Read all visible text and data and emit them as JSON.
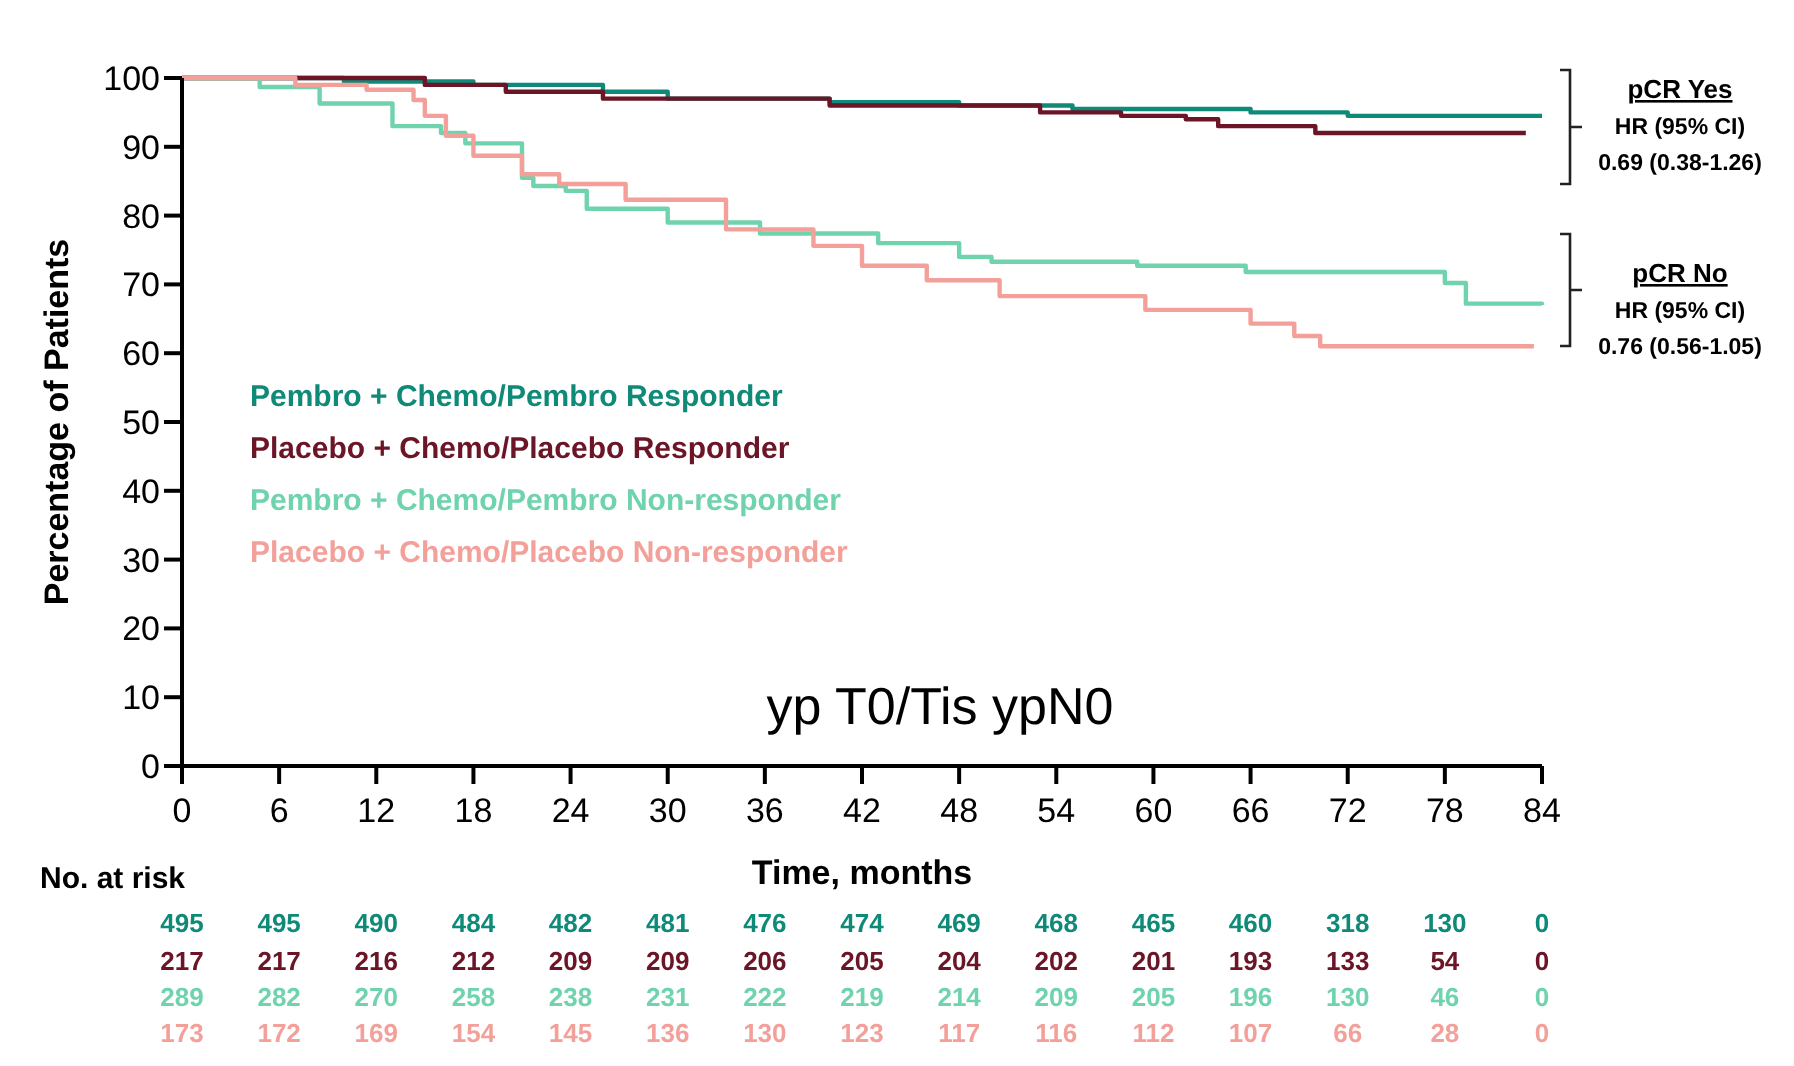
{
  "chart_data": {
    "type": "step",
    "title": "yp T0/Tis ypN0",
    "xlabel": "Time, months",
    "ylabel": "Percentage of Patients",
    "xlim": [
      0,
      84
    ],
    "xticks": [
      0,
      6,
      12,
      18,
      24,
      30,
      36,
      42,
      48,
      54,
      60,
      66,
      72,
      78,
      84
    ],
    "ylim": [
      0,
      100
    ],
    "yticks": [
      0,
      10,
      20,
      30,
      40,
      50,
      60,
      70,
      80,
      90,
      100
    ],
    "legend": "left",
    "grid": false,
    "series": [
      {
        "name": "Pembro + Chemo/Pembro Responder",
        "color": "#0f8a78",
        "x": [
          0,
          10,
          18,
          26,
          30,
          40,
          48,
          55,
          62,
          66,
          72,
          84
        ],
        "values": [
          100,
          99.5,
          99,
          98,
          97,
          96.5,
          96,
          95.5,
          95.5,
          95,
          94.5,
          94.5
        ]
      },
      {
        "name": "Placebo + Chemo/Placebo Responder",
        "color": "#6b1526",
        "x": [
          0,
          15,
          20,
          26,
          40,
          53,
          58,
          62,
          64,
          70,
          83
        ],
        "values": [
          100,
          99,
          98,
          97,
          96,
          95,
          94.5,
          94,
          93,
          92,
          92
        ]
      },
      {
        "name": "Pembro + Chemo/Pembro Non-responder",
        "color": "#6fd3ad",
        "x": [
          0,
          3.6,
          4.8,
          8.5,
          13,
          16,
          17.5,
          21,
          21.7,
          23.7,
          25,
          30,
          35.7,
          43,
          48,
          50,
          59,
          65.7,
          78,
          79.3,
          84
        ],
        "values": [
          100,
          100,
          98.7,
          96.3,
          93,
          92,
          90.5,
          85.5,
          84.3,
          83.6,
          81,
          79,
          77.4,
          76,
          74,
          73.3,
          72.7,
          71.8,
          70.2,
          67.2,
          67
        ]
      },
      {
        "name": "Placebo + Chemo/Placebo Non-responder",
        "color": "#f4a09a",
        "x": [
          0,
          7,
          11.4,
          14.3,
          15,
          16.3,
          18,
          21,
          23.3,
          27.4,
          33.6,
          39,
          42,
          46,
          50.5,
          59.5,
          66,
          68.7,
          70.3,
          83.5
        ],
        "values": [
          100,
          99,
          98.3,
          96.8,
          94.5,
          91.6,
          88.7,
          86,
          84.6,
          82.3,
          78,
          75.6,
          72.7,
          70.6,
          68.3,
          66.3,
          64.3,
          62.5,
          61,
          61
        ]
      }
    ],
    "annotations": [
      "No. at risk",
      "495 495 490 484 482 481 476 474 469 468 465 460 318 130 0",
      "217 217 216 212 209 209 206 205 204 202 201 193 133 54 0",
      "289 282 270 258 238 231 222 219 214 209 205 196 130 46 0",
      "173 172 169 154 145 136 130 123 117 116 112 107 66 28 0",
      "pCR Yes",
      "HR (95% CI)",
      "0.69 (0.38-1.26)",
      "pCR No",
      "HR (95% CI)",
      "0.76 (0.56-1.05)"
    ]
  }
}
